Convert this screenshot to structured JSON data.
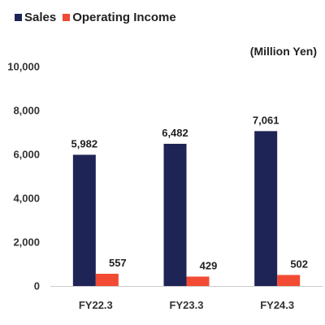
{
  "legend": {
    "items": [
      {
        "label": "Sales",
        "color": "#1f2456"
      },
      {
        "label": "Operating Income",
        "color": "#f24a33"
      }
    ]
  },
  "unit_label": "(Million Yen)",
  "chart_data": {
    "type": "bar",
    "categories": [
      "FY22.3",
      "FY23.3",
      "FY24.3"
    ],
    "series": [
      {
        "name": "Sales",
        "values": [
          5982,
          6482,
          7061
        ],
        "color": "#1f2456"
      },
      {
        "name": "Operating Income",
        "values": [
          557,
          429,
          502
        ],
        "color": "#f24a33"
      }
    ],
    "data_labels": [
      [
        "5,982",
        "6,482",
        "7,061"
      ],
      [
        "557",
        "429",
        "502"
      ]
    ],
    "ylim": [
      0,
      10000
    ],
    "yticks": [
      "0",
      "2,000",
      "4,000",
      "6,000",
      "8,000",
      "10,000"
    ],
    "ytick_values": [
      0,
      2000,
      4000,
      6000,
      8000,
      10000
    ],
    "grid": false,
    "legend_position": "top-left"
  }
}
